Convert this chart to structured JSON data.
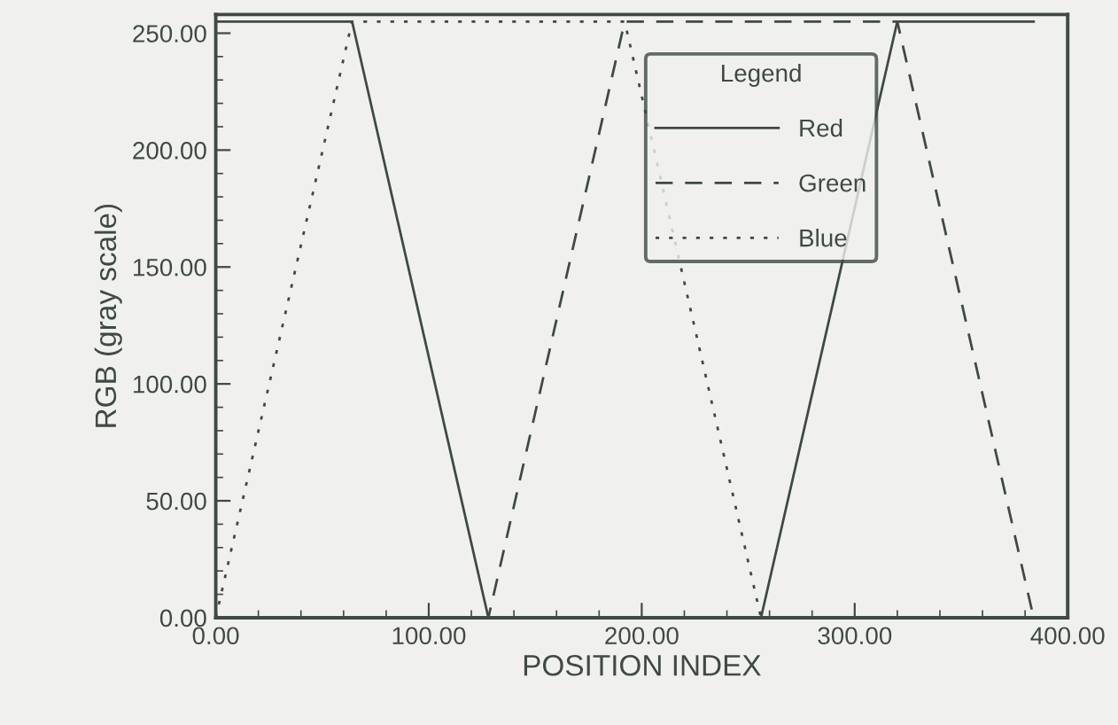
{
  "chart_data": {
    "type": "line",
    "xlabel": "POSITION INDEX",
    "ylabel": "RGB (gray scale)",
    "legend_title": "Legend",
    "xlim": [
      0,
      400
    ],
    "xticks": [
      {
        "value": 0,
        "label": "0.00"
      },
      {
        "value": 100,
        "label": "100.00"
      },
      {
        "value": 200,
        "label": "200.00"
      },
      {
        "value": 300,
        "label": "300.00"
      },
      {
        "value": 400,
        "label": "400.00"
      }
    ],
    "ylim": [
      0,
      258
    ],
    "yticks": [
      {
        "value": 0,
        "label": "0.00"
      },
      {
        "value": 50,
        "label": "50.00"
      },
      {
        "value": 100,
        "label": "100.00"
      },
      {
        "value": 150,
        "label": "150.00"
      },
      {
        "value": 200,
        "label": "200.00"
      },
      {
        "value": 250,
        "label": "250.00"
      }
    ],
    "grid": false,
    "legend": "top right",
    "marker": "none",
    "series": [
      {
        "name": "Red",
        "color": "#3f4a42",
        "line_style": "solid",
        "x": [
          0,
          64,
          128,
          256,
          320,
          384
        ],
        "values": [
          255,
          255,
          0,
          0,
          255,
          255
        ]
      },
      {
        "name": "Green",
        "color": "#3f4a42",
        "line_style": "dashed",
        "x": [
          0,
          128,
          192,
          320,
          384
        ],
        "values": [
          0,
          0,
          255,
          255,
          0
        ]
      },
      {
        "name": "Blue",
        "color": "#3f4a42",
        "line_style": "dotted",
        "x": [
          0,
          64,
          192,
          256,
          384
        ],
        "values": [
          0,
          255,
          255,
          0,
          0
        ]
      }
    ]
  }
}
